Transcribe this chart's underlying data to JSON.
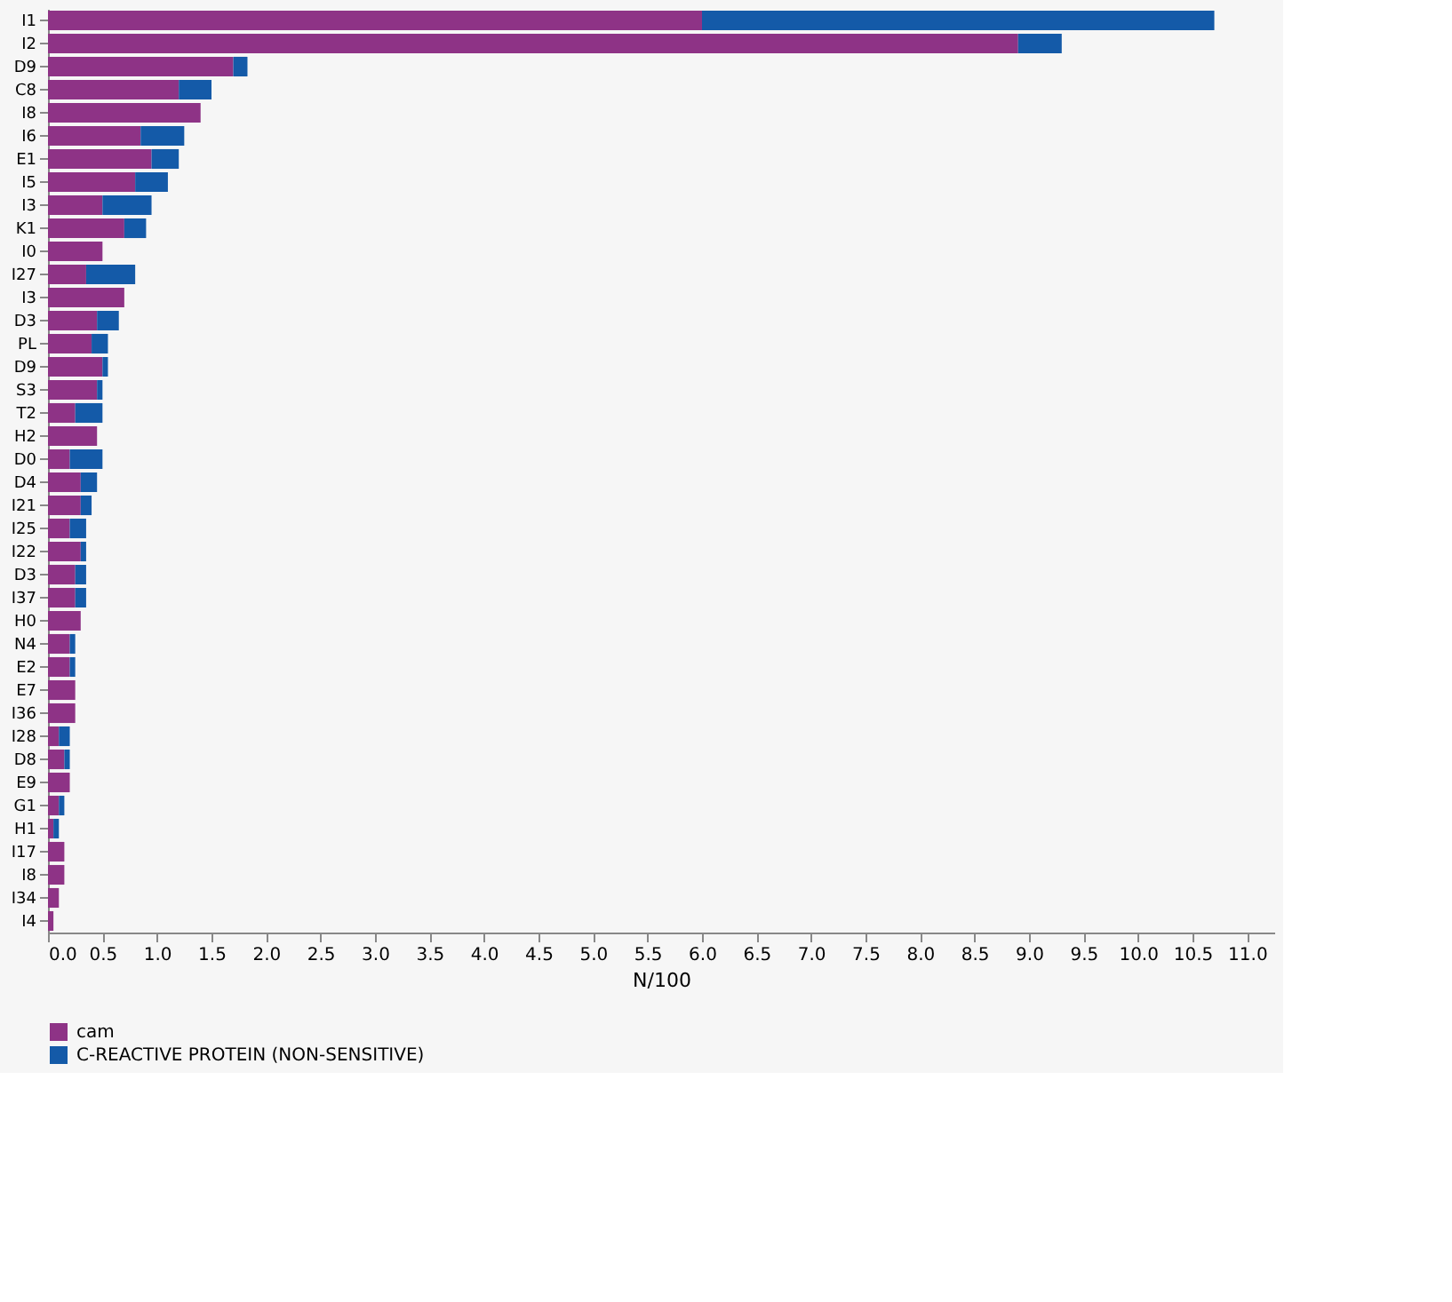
{
  "chart_data": {
    "type": "bar",
    "orientation": "horizontal",
    "stacked": true,
    "xlabel": "N/100",
    "categories": [
      "I1",
      "I2",
      "D9",
      "C8",
      "I8",
      "I6",
      "E1",
      "I5",
      "I3",
      "K1",
      "I0",
      "I27",
      "I3",
      "D3",
      "PL",
      "D9",
      "S3",
      "T2",
      "H2",
      "D0",
      "D4",
      "I21",
      "I25",
      "I22",
      "D3",
      "I37",
      "H0",
      "N4",
      "E2",
      "E7",
      "I36",
      "I28",
      "D8",
      "E9",
      "G1",
      "H1",
      "I17",
      "I8",
      "I34",
      "I4"
    ],
    "series": [
      {
        "name": "cam",
        "color": "#8e3386",
        "values": [
          6.0,
          8.9,
          1.7,
          1.2,
          1.4,
          0.85,
          0.95,
          0.8,
          0.5,
          0.7,
          0.5,
          0.35,
          0.7,
          0.45,
          0.4,
          0.5,
          0.45,
          0.25,
          0.45,
          0.2,
          0.3,
          0.3,
          0.2,
          0.3,
          0.25,
          0.25,
          0.3,
          0.2,
          0.2,
          0.25,
          0.25,
          0.1,
          0.15,
          0.2,
          0.1,
          0.05,
          0.15,
          0.15,
          0.1,
          0.05
        ]
      },
      {
        "name": "C-REACTIVE PROTEIN (NON-SENSITIVE)",
        "color": "#145aa8",
        "values": [
          4.7,
          0.4,
          0.13,
          0.3,
          null,
          0.4,
          0.25,
          0.3,
          0.45,
          0.2,
          null,
          0.45,
          null,
          0.2,
          0.15,
          0.05,
          0.05,
          0.25,
          null,
          0.3,
          0.15,
          0.1,
          0.15,
          0.05,
          0.1,
          0.1,
          null,
          0.05,
          0.05,
          null,
          null,
          0.1,
          0.05,
          null,
          0.05,
          0.05,
          null,
          null,
          null,
          null
        ]
      }
    ],
    "xlim": [
      0,
      11.25
    ],
    "xticks": [
      {
        "value": 0,
        "label": "0.0"
      },
      0.5,
      {
        "value": 1,
        "label": "1.0"
      },
      1.5,
      {
        "value": 2,
        "label": "2.0"
      },
      2.5,
      {
        "value": 3,
        "label": "3.0"
      },
      3.5,
      {
        "value": 4,
        "label": "4.0"
      },
      4.5,
      {
        "value": 5,
        "label": "5.0"
      },
      5.5,
      {
        "value": 6,
        "label": "6.0"
      },
      6.5,
      {
        "value": 7,
        "label": "7.0"
      },
      7.5,
      {
        "value": 8,
        "label": "8.0"
      },
      8.5,
      {
        "value": 9,
        "label": "9.0"
      },
      9.5,
      {
        "value": 10,
        "label": "10.0"
      },
      10.5,
      {
        "value": 11,
        "label": "11.0"
      }
    ],
    "grid": false,
    "legend": "bottom"
  }
}
